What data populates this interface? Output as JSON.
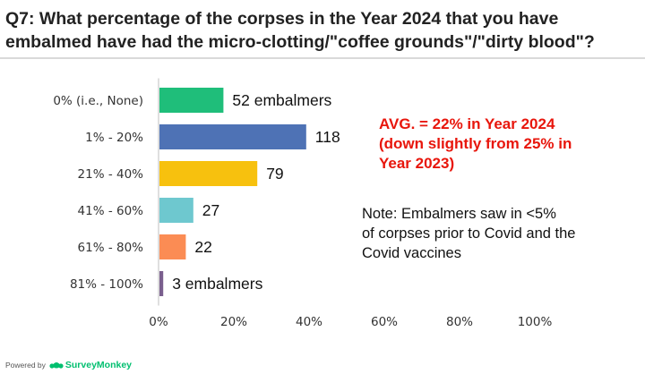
{
  "title": "Q7: What percentage of the corpses in the Year 2024 that you have embalmed have had the micro-clotting/\"coffee grounds\"/\"dirty blood\"?",
  "avg_note": {
    "lines": [
      "AVG. =  22% in Year 2024",
      "(down slightly from 25% in",
      "Year 2023)"
    ],
    "color": "#e8160c"
  },
  "note": {
    "lines": [
      "Note:  Embalmers saw in <5%",
      "of corpses prior to Covid and the",
      "Covid vaccines"
    ]
  },
  "footer": {
    "powered_by": "Powered by",
    "brand": "SurveyMonkey",
    "brand_color": "#00bf6f"
  },
  "chart_data": {
    "type": "bar",
    "orientation": "horizontal",
    "categories": [
      "0% (i.e., None)",
      "1% - 20%",
      "21% - 40%",
      "41% - 60%",
      "61% - 80%",
      "81% - 100%"
    ],
    "values": [
      52,
      118,
      79,
      27,
      22,
      3
    ],
    "value_percent": [
      17,
      39,
      26,
      9,
      7,
      1
    ],
    "data_labels": [
      "52 embalmers",
      "118",
      "79",
      "27",
      "22",
      "3 embalmers"
    ],
    "colors": [
      "#1fbe7a",
      "#4e72b5",
      "#f7c10e",
      "#6ec8cf",
      "#fb8c54",
      "#7a5f8e"
    ],
    "x_ticks": [
      "0%",
      "20%",
      "40%",
      "60%",
      "80%",
      "100%"
    ],
    "xlim": [
      0,
      100
    ],
    "grid": false
  }
}
